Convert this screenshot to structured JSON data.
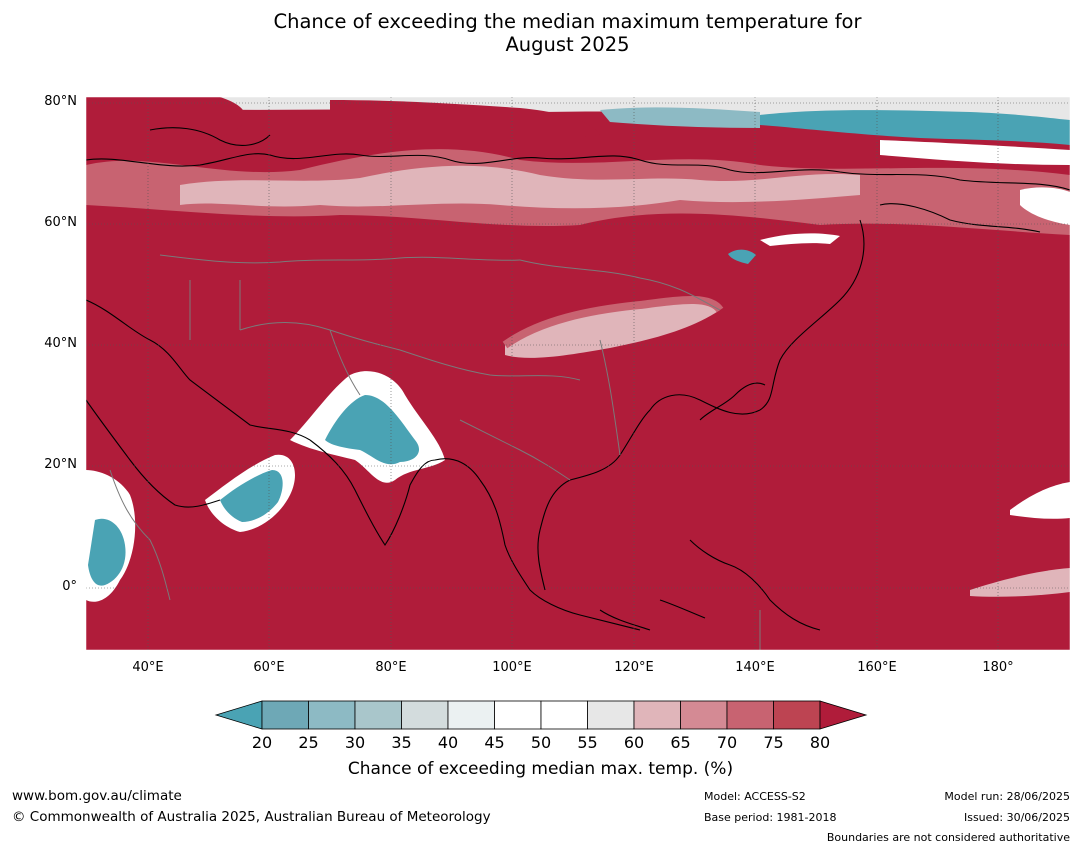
{
  "title_line1": "Chance of exceeding the median maximum temperature for",
  "title_line2": "August 2025",
  "latitude_labels": [
    "80°N",
    "60°N",
    "40°N",
    "20°N",
    "0°"
  ],
  "longitude_labels": [
    "40°E",
    "60°E",
    "80°E",
    "100°E",
    "120°E",
    "140°E",
    "160°E",
    "180°"
  ],
  "map_extent": {
    "lon_min": 30,
    "lon_max": 192,
    "lat_min": -10,
    "lat_max": 81
  },
  "colorbar": {
    "ticks": [
      "20",
      "25",
      "30",
      "35",
      "40",
      "45",
      "50",
      "55",
      "60",
      "65",
      "70",
      "75",
      "80"
    ],
    "colors": [
      "#4aa3b4",
      "#6ea8b6",
      "#8dbac4",
      "#a9c6cb",
      "#d3dcdd",
      "#ebf1f2",
      "#ffffff",
      "#ffffff",
      "#e7e7e7",
      "#e0b5ba",
      "#d48a94",
      "#c86371",
      "#bd4452",
      "#b01c3a"
    ],
    "label": "Chance of exceeding median max. temp. (%)"
  },
  "colors": {
    "hot": "#b01c3a",
    "warm": "#c86371",
    "mild": "#e0b5ba",
    "neutral": "#ffffff",
    "cool": "#4aa3b4",
    "coolish": "#8dbac4"
  },
  "footer": {
    "url": "www.bom.gov.au/climate",
    "copyright": "© Commonwealth of Australia 2025, Australian Bureau of Meteorology",
    "model": "Model: ACCESS-S2",
    "base_period": "Base period: 1981-2018",
    "model_run": "Model run: 28/06/2025",
    "issued": "Issued: 30/06/2025",
    "disclaimer": "Boundaries are not considered authoritative"
  }
}
